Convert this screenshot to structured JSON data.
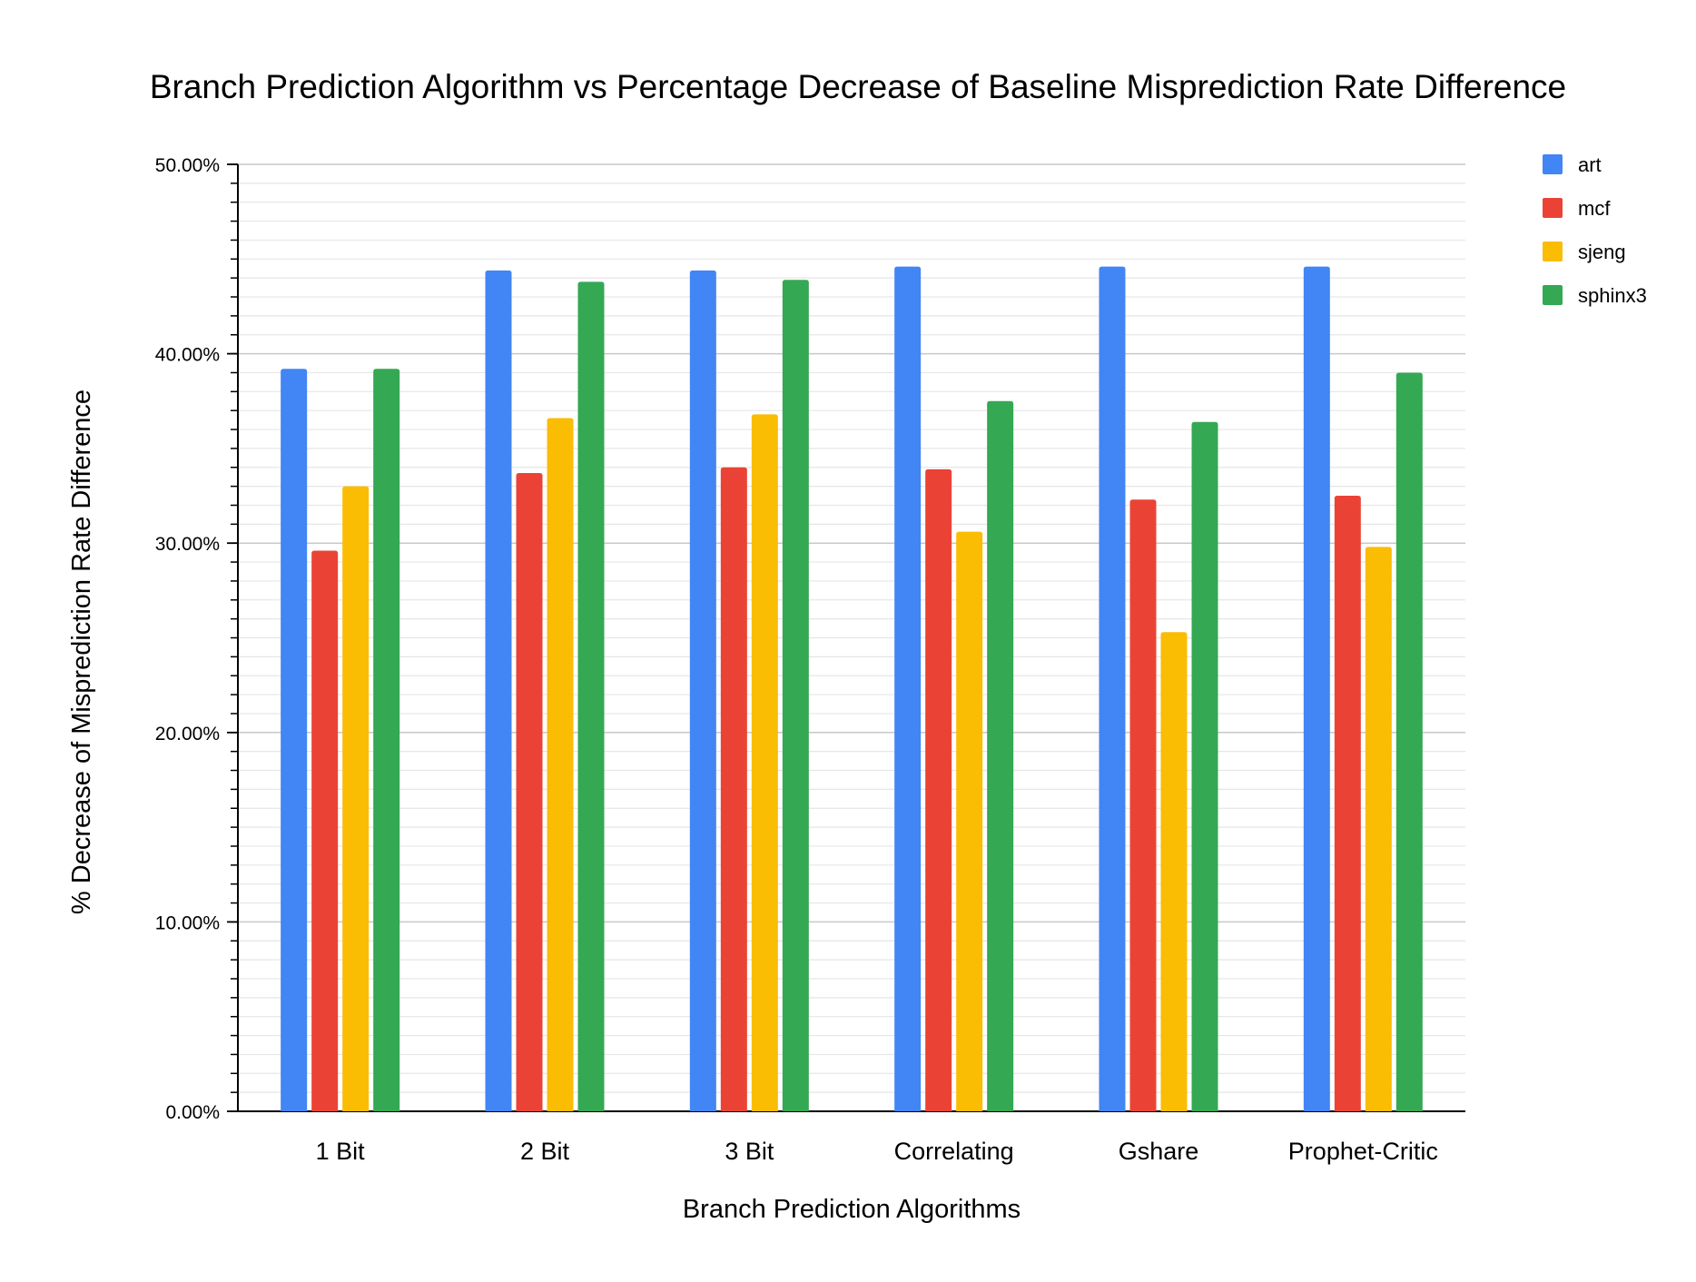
{
  "chart_data": {
    "type": "bar",
    "title": "Branch Prediction Algorithm vs Percentage Decrease of Baseline Misprediction Rate Difference",
    "xlabel": "Branch Prediction Algorithms",
    "ylabel": "% Decrease of Misprediction Rate Difference",
    "ylim": [
      0,
      50
    ],
    "yticks": [
      {
        "value": 0,
        "label": "0.00%"
      },
      {
        "value": 10,
        "label": "10.00%"
      },
      {
        "value": 20,
        "label": "20.00%"
      },
      {
        "value": 30,
        "label": "30.00%"
      },
      {
        "value": 40,
        "label": "40.00%"
      },
      {
        "value": 50,
        "label": "50.00%"
      }
    ],
    "grid": true,
    "legend_position": "right",
    "categories": [
      "1 Bit",
      "2 Bit",
      "3 Bit",
      "Correlating",
      "Gshare",
      "Prophet-Critic"
    ],
    "series": [
      {
        "name": "art",
        "color": "#4285F4",
        "values": [
          39.2,
          44.4,
          44.4,
          44.6,
          44.6,
          44.6
        ]
      },
      {
        "name": "mcf",
        "color": "#EA4335",
        "values": [
          29.6,
          33.7,
          34.0,
          33.9,
          32.3,
          32.5
        ]
      },
      {
        "name": "sjeng",
        "color": "#FBBC04",
        "values": [
          33.0,
          36.6,
          36.8,
          30.6,
          25.3,
          29.8
        ]
      },
      {
        "name": "sphinx3",
        "color": "#34A853",
        "values": [
          39.2,
          43.8,
          43.9,
          37.5,
          36.4,
          39.0
        ]
      }
    ]
  }
}
